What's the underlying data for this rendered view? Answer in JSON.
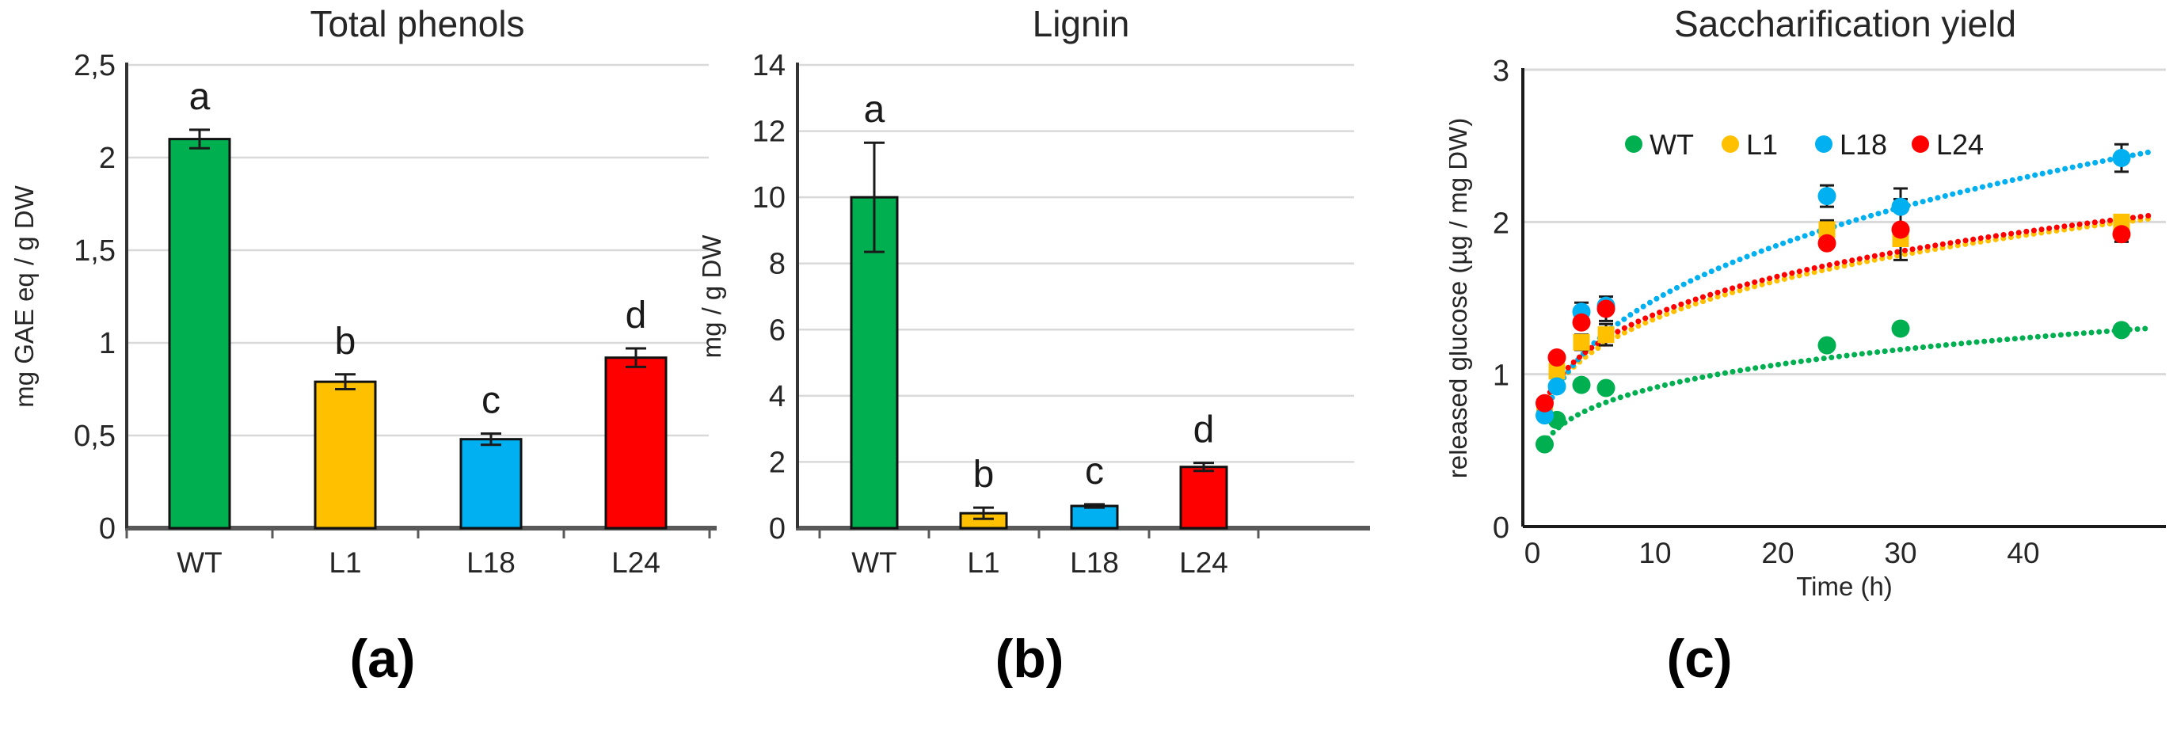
{
  "palette": {
    "green": "#00B050",
    "yellow": "#FFC000",
    "blue": "#00B0F0",
    "red": "#FF0000",
    "gridline": "#D9D9D9",
    "baseline": "#595959",
    "axis": "#262626"
  },
  "panels": [
    {
      "caption": "(a)"
    },
    {
      "caption": "(b)"
    },
    {
      "caption": "(c)"
    }
  ],
  "chart_data": [
    {
      "type": "bar",
      "title": "Total phenols",
      "ylabel": "mg GAE eq / g DW",
      "yticks": [
        "0",
        "0,5",
        "1",
        "1,5",
        "2",
        "2,5"
      ],
      "ytick_values": [
        0,
        0.5,
        1,
        1.5,
        2,
        2.5
      ],
      "ymax": 2.5,
      "grid": true,
      "categories": [
        "WT",
        "L1",
        "L18",
        "L24"
      ],
      "values": [
        2.1,
        0.79,
        0.48,
        0.92
      ],
      "errors": [
        0.05,
        0.04,
        0.03,
        0.05
      ],
      "letters": [
        "a",
        "b",
        "c",
        "d"
      ],
      "colors": [
        "#00B050",
        "#FFC000",
        "#00B0F0",
        "#FF0000"
      ]
    },
    {
      "type": "bar",
      "title": "Lignin",
      "ylabel": "mg / g DW",
      "yticks": [
        "0",
        "2",
        "4",
        "6",
        "8",
        "10",
        "12",
        "14"
      ],
      "ytick_values": [
        0,
        2,
        4,
        6,
        8,
        10,
        12,
        14
      ],
      "ymax": 14,
      "grid": true,
      "categories": [
        "WT",
        "L1",
        "L18",
        "L24"
      ],
      "values": [
        10.0,
        0.45,
        0.67,
        1.85
      ],
      "errors": [
        1.65,
        0.17,
        0.05,
        0.12
      ],
      "letters": [
        "a",
        "b",
        "c",
        "d"
      ],
      "colors": [
        "#00B050",
        "#FFC000",
        "#00B0F0",
        "#FF0000"
      ]
    },
    {
      "type": "scatter",
      "title": "Saccharification yield",
      "ylabel": "released glucose (µg / mg DW)",
      "xlabel": "Time (h)",
      "yticks": [
        "0",
        "1",
        "2",
        "3"
      ],
      "ytick_values": [
        0,
        1,
        2,
        3
      ],
      "ymax": 3,
      "xticks": [
        "0",
        "10",
        "20",
        "30",
        "40"
      ],
      "xtick_values": [
        0,
        10,
        20,
        30,
        40
      ],
      "xmax": 51,
      "grid": true,
      "legend": [
        "WT",
        "L1",
        "L18",
        "L24"
      ],
      "series": [
        {
          "name": "WT",
          "color": "#00B050",
          "marker": "circle",
          "trend": {
            "a": 0.55,
            "b": 0.22
          },
          "points": [
            {
              "t": 1,
              "v": 0.54,
              "e": null
            },
            {
              "t": 2,
              "v": 0.7,
              "e": null
            },
            {
              "t": 4,
              "v": 0.93,
              "e": null
            },
            {
              "t": 6,
              "v": 0.91,
              "e": null
            },
            {
              "t": 24,
              "v": 1.19,
              "e": null
            },
            {
              "t": 30,
              "v": 1.3,
              "e": null
            },
            {
              "t": 48,
              "v": 1.29,
              "e": null
            }
          ]
        },
        {
          "name": "L1",
          "color": "#FFC000",
          "marker": "square",
          "trend": {
            "a": 0.78,
            "b": 0.243
          },
          "points": [
            {
              "t": 1,
              "v": 0.77,
              "e": null
            },
            {
              "t": 2,
              "v": 1.02,
              "e": null
            },
            {
              "t": 4,
              "v": 1.21,
              "e": 0.05
            },
            {
              "t": 6,
              "v": 1.26,
              "e": 0.07
            },
            {
              "t": 24,
              "v": 1.95,
              "e": 0.06
            },
            {
              "t": 30,
              "v": 1.89,
              "e": null
            },
            {
              "t": 48,
              "v": 2.0,
              "e": null
            }
          ]
        },
        {
          "name": "L18",
          "color": "#00B0F0",
          "marker": "circle",
          "trend": {
            "a": 0.73,
            "b": 0.31
          },
          "points": [
            {
              "t": 1,
              "v": 0.73,
              "e": null
            },
            {
              "t": 2,
              "v": 0.92,
              "e": null
            },
            {
              "t": 4,
              "v": 1.41,
              "e": 0.06
            },
            {
              "t": 6,
              "v": 1.45,
              "e": null
            },
            {
              "t": 24,
              "v": 2.17,
              "e": 0.07
            },
            {
              "t": 30,
              "v": 2.1,
              "e": 0.12
            },
            {
              "t": 48,
              "v": 2.42,
              "e": 0.09
            }
          ]
        },
        {
          "name": "L24",
          "color": "#FF0000",
          "marker": "circle",
          "trend": {
            "a": 0.81,
            "b": 0.236
          },
          "points": [
            {
              "t": 1,
              "v": 0.81,
              "e": null
            },
            {
              "t": 2,
              "v": 1.11,
              "e": null
            },
            {
              "t": 4,
              "v": 1.34,
              "e": null
            },
            {
              "t": 6,
              "v": 1.43,
              "e": 0.08
            },
            {
              "t": 24,
              "v": 1.86,
              "e": null
            },
            {
              "t": 30,
              "v": 1.95,
              "e": 0.2
            },
            {
              "t": 48,
              "v": 1.92,
              "e": 0.05
            }
          ]
        }
      ]
    }
  ]
}
